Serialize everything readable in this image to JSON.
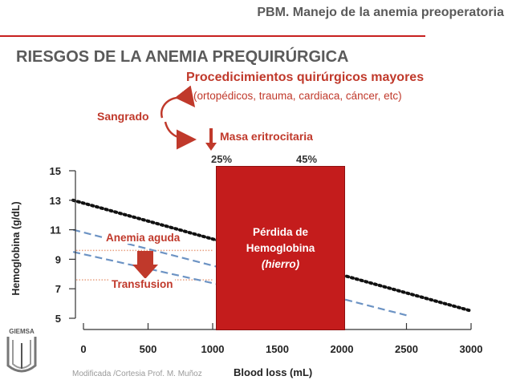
{
  "header": {
    "title": "PBM. Manejo de la anemia preoperatoria"
  },
  "slide": {
    "title": "RIESGOS DE LA ANEMIA PREQUIRÚRGICA"
  },
  "annotations": {
    "procedures_title": "Procedicimientos quirúrgicos mayores",
    "procedures_sub": "(ortopédicos, trauma, cardiaca, cáncer, etc)",
    "bleeding": "Sangrado",
    "red_cell_mass": "Masa eritrocitaria",
    "pct_low": "25%",
    "pct_high": "45%",
    "loss_line1": "Pérdida de",
    "loss_line2": "Hemoglobina",
    "loss_line3": "(hierro)",
    "acute_anemia": "Anemia aguda",
    "transfusion": "Transfusion"
  },
  "footer": {
    "credit": "Modificada /Cortesia Prof. M. Muñoz",
    "logo_text": "GIEMSA"
  },
  "colors": {
    "accent": "#c41c1c",
    "blue_dash": "#6c93c4",
    "threshold": "#e8a080"
  },
  "chart_data": {
    "type": "line",
    "xlabel": "Blood loss (mL)",
    "ylabel": "Hemoglobina (g/dL)",
    "xlim": [
      0,
      3000
    ],
    "ylim": [
      5,
      15
    ],
    "x_ticks": [
      0,
      500,
      1000,
      1500,
      2000,
      2500,
      3000
    ],
    "y_ticks": [
      5,
      7,
      9,
      11,
      13,
      15
    ],
    "series": [
      {
        "style": "black-dotted",
        "x": [
          -80,
          3000
        ],
        "y": [
          13,
          5.5
        ]
      },
      {
        "style": "blue-dashed",
        "x": [
          -80,
          2500
        ],
        "y": [
          11,
          5.2
        ]
      },
      {
        "style": "blue-dashed",
        "x": [
          -80,
          1500
        ],
        "y": [
          9.5,
          6.4
        ]
      }
    ],
    "thresholds": [
      9.6,
      7.6
    ],
    "highlight_band": {
      "x": [
        1000,
        2000
      ],
      "label_lines": [
        "Pérdida de",
        "Hemoglobina",
        "(hierro)"
      ]
    },
    "legend": "none",
    "grid": false
  }
}
